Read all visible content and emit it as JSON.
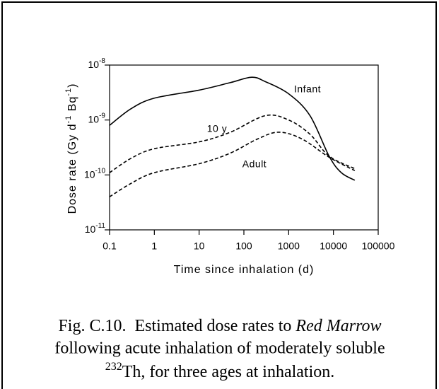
{
  "chart_data": {
    "type": "line",
    "xlabel": "Time since inhalation (d)",
    "ylabel": [
      "Dose rate (Gy d",
      "-1",
      " Bq",
      "-1",
      ")"
    ],
    "xscale": "log",
    "yscale": "log",
    "xlim": [
      0.1,
      100000
    ],
    "ylim": [
      1e-11,
      1e-08
    ],
    "xticks": [
      0.1,
      1,
      10,
      100,
      1000,
      10000,
      100000
    ],
    "yticks": [
      {
        "value": 1e-11,
        "label": "10",
        "exponent": "-11"
      },
      {
        "value": 1e-10,
        "label": "10",
        "exponent": "-10"
      },
      {
        "value": 1e-09,
        "label": "10",
        "exponent": "-9"
      },
      {
        "value": 1e-08,
        "label": "10",
        "exponent": "-8"
      }
    ],
    "series": [
      {
        "name": "Infant",
        "color": "#000000",
        "line_style": "solid",
        "x": [
          0.1,
          0.3,
          1,
          10,
          50,
          150,
          300,
          1000,
          3000,
          8000,
          15000,
          30000
        ],
        "values": [
          8e-10,
          1.6e-09,
          2.5e-09,
          3.5e-09,
          4.8e-09,
          6e-09,
          5e-09,
          3e-09,
          1.2e-09,
          2.2e-10,
          1.1e-10,
          8e-11
        ]
      },
      {
        "name": "10 y",
        "color": "#000000",
        "line_style": "dashed",
        "x": [
          0.1,
          0.3,
          1,
          10,
          50,
          300,
          1000,
          3000,
          8000,
          30000
        ],
        "values": [
          1.1e-10,
          2e-10,
          3e-10,
          4e-10,
          6e-10,
          1.2e-09,
          1e-09,
          5.5e-10,
          2.2e-10,
          1.3e-10
        ]
      },
      {
        "name": "Adult",
        "color": "#000000",
        "line_style": "dashed",
        "x": [
          0.1,
          0.3,
          1,
          10,
          50,
          200,
          600,
          2000,
          8000,
          30000
        ],
        "values": [
          4e-11,
          7e-11,
          1.1e-10,
          1.6e-10,
          2.5e-10,
          4.5e-10,
          6e-10,
          4.5e-10,
          2.1e-10,
          1.2e-10
        ]
      }
    ]
  },
  "caption": {
    "text1": "Fig. C.10.  Estimated dose rates to ",
    "italic": "Red Marrow",
    "text2": "following acute inhalation of moderately soluble",
    "sup": "232",
    "text3": "Th, for three ages at inhalation."
  }
}
